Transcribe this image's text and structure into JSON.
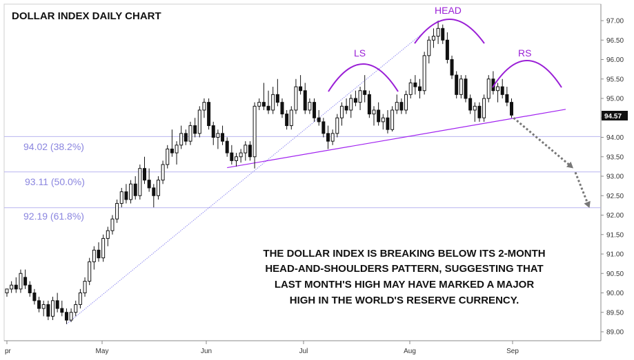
{
  "chart_data": {
    "type": "candlestick",
    "title": "DOLLAR INDEX DAILY CHART",
    "x_tick_labels": [
      "pr",
      "May",
      "Jun",
      "Jul",
      "Aug",
      "Sep"
    ],
    "y_tick_labels": [
      "89.00",
      "89.50",
      "90.00",
      "90.50",
      "91.00",
      "91.50",
      "92.00",
      "92.50",
      "93.00",
      "93.50",
      "94.00",
      "94.50",
      "95.00",
      "95.50",
      "96.00",
      "96.50",
      "97.00"
    ],
    "ylim": [
      88.9,
      97.2
    ],
    "last_price": "94.57",
    "series": [
      {
        "values": [
          [
            90.0,
            90.1,
            89.9,
            90.1
          ],
          [
            90.1,
            90.3,
            90.0,
            90.2
          ],
          [
            90.2,
            90.4,
            90.0,
            90.1
          ],
          [
            90.1,
            90.6,
            90.0,
            90.5
          ],
          [
            90.4,
            90.6,
            90.1,
            90.2
          ],
          [
            90.2,
            90.3,
            89.9,
            90.0
          ],
          [
            90.0,
            90.1,
            89.7,
            89.8
          ],
          [
            89.8,
            89.9,
            89.5,
            89.6
          ],
          [
            89.6,
            89.8,
            89.4,
            89.7
          ],
          [
            89.7,
            89.8,
            89.3,
            89.4
          ],
          [
            89.4,
            89.9,
            89.3,
            89.8
          ],
          [
            89.8,
            90.0,
            89.5,
            89.6
          ],
          [
            89.6,
            89.8,
            89.4,
            89.5
          ],
          [
            89.5,
            89.6,
            89.2,
            89.3
          ],
          [
            89.3,
            89.6,
            89.25,
            89.5
          ],
          [
            89.5,
            89.8,
            89.4,
            89.7
          ],
          [
            89.7,
            90.1,
            89.6,
            90.0
          ],
          [
            90.0,
            90.4,
            89.9,
            90.3
          ],
          [
            90.3,
            90.9,
            90.2,
            90.8
          ],
          [
            90.8,
            91.2,
            90.6,
            91.1
          ],
          [
            91.1,
            91.3,
            90.8,
            90.9
          ],
          [
            90.9,
            91.5,
            90.8,
            91.4
          ],
          [
            91.4,
            91.7,
            91.2,
            91.6
          ],
          [
            91.6,
            92.0,
            91.5,
            91.9
          ],
          [
            91.9,
            92.4,
            91.8,
            92.3
          ],
          [
            92.3,
            92.7,
            92.2,
            92.6
          ],
          [
            92.6,
            92.8,
            92.3,
            92.4
          ],
          [
            92.4,
            92.9,
            92.3,
            92.8
          ],
          [
            92.8,
            93.0,
            92.4,
            92.5
          ],
          [
            92.5,
            93.3,
            92.4,
            93.2
          ],
          [
            93.2,
            93.5,
            92.8,
            92.9
          ],
          [
            92.9,
            93.2,
            92.6,
            92.7
          ],
          [
            92.7,
            92.8,
            92.2,
            92.5
          ],
          [
            92.5,
            93.0,
            92.4,
            92.9
          ],
          [
            92.9,
            93.4,
            92.8,
            93.3
          ],
          [
            93.3,
            93.8,
            93.2,
            93.7
          ],
          [
            93.7,
            94.2,
            93.5,
            93.6
          ],
          [
            93.6,
            93.9,
            93.3,
            93.8
          ],
          [
            93.8,
            94.3,
            93.7,
            94.1
          ],
          [
            94.1,
            94.2,
            93.8,
            93.9
          ],
          [
            93.9,
            94.4,
            93.8,
            94.3
          ],
          [
            94.3,
            94.5,
            94.0,
            94.1
          ],
          [
            94.1,
            94.8,
            94.0,
            94.7
          ],
          [
            94.7,
            95.0,
            94.5,
            94.9
          ],
          [
            94.9,
            95.0,
            94.2,
            94.3
          ],
          [
            94.3,
            94.4,
            93.8,
            94.0
          ],
          [
            94.0,
            94.2,
            93.7,
            94.1
          ],
          [
            94.1,
            94.3,
            93.8,
            93.9
          ],
          [
            93.9,
            94.0,
            93.5,
            93.6
          ],
          [
            93.6,
            93.8,
            93.3,
            93.4
          ],
          [
            93.4,
            93.6,
            93.25,
            93.5
          ],
          [
            93.5,
            93.7,
            93.35,
            93.6
          ],
          [
            93.6,
            93.9,
            93.4,
            93.8
          ],
          [
            93.8,
            93.9,
            93.4,
            93.5
          ],
          [
            93.5,
            94.9,
            93.2,
            94.8
          ],
          [
            94.8,
            95.0,
            94.7,
            94.9
          ],
          [
            94.9,
            95.4,
            94.7,
            94.8
          ],
          [
            94.8,
            95.2,
            94.6,
            94.7
          ],
          [
            94.7,
            95.3,
            94.6,
            95.1
          ],
          [
            95.1,
            95.5,
            94.8,
            94.9
          ],
          [
            94.9,
            95.0,
            94.5,
            94.6
          ],
          [
            94.6,
            94.7,
            94.2,
            94.3
          ],
          [
            94.3,
            94.8,
            94.2,
            94.7
          ],
          [
            94.7,
            95.5,
            94.6,
            95.3
          ],
          [
            95.3,
            95.6,
            95.1,
            95.2
          ],
          [
            95.2,
            95.4,
            94.6,
            94.7
          ],
          [
            94.7,
            95.0,
            94.6,
            94.9
          ],
          [
            94.9,
            95.0,
            94.4,
            94.5
          ],
          [
            94.5,
            94.7,
            94.3,
            94.4
          ],
          [
            94.4,
            94.5,
            94.0,
            94.1
          ],
          [
            94.1,
            94.3,
            93.7,
            93.9
          ],
          [
            93.9,
            94.2,
            93.8,
            94.1
          ],
          [
            94.1,
            94.6,
            94.0,
            94.5
          ],
          [
            94.5,
            94.9,
            94.3,
            94.8
          ],
          [
            94.8,
            95.0,
            94.6,
            94.7
          ],
          [
            94.7,
            95.1,
            94.5,
            95.0
          ],
          [
            95.0,
            95.2,
            94.8,
            94.9
          ],
          [
            94.9,
            95.3,
            94.7,
            95.2
          ],
          [
            95.2,
            95.6,
            94.9,
            95.1
          ],
          [
            95.1,
            95.2,
            94.5,
            94.6
          ],
          [
            94.6,
            94.8,
            94.3,
            94.7
          ],
          [
            94.7,
            94.9,
            94.3,
            94.4
          ],
          [
            94.4,
            94.6,
            94.2,
            94.5
          ],
          [
            94.5,
            94.7,
            94.1,
            94.2
          ],
          [
            94.2,
            94.8,
            94.15,
            94.7
          ],
          [
            94.7,
            95.1,
            94.6,
            94.9
          ],
          [
            94.9,
            95.0,
            94.6,
            94.7
          ],
          [
            94.7,
            95.2,
            94.6,
            95.1
          ],
          [
            95.1,
            95.5,
            95.0,
            95.4
          ],
          [
            95.4,
            95.6,
            95.1,
            95.3
          ],
          [
            95.3,
            95.5,
            95.0,
            95.2
          ],
          [
            95.2,
            96.2,
            95.1,
            96.1
          ],
          [
            96.1,
            96.6,
            95.9,
            96.5
          ],
          [
            96.5,
            96.8,
            96.3,
            96.6
          ],
          [
            96.6,
            97.0,
            96.4,
            96.8
          ],
          [
            96.8,
            96.9,
            96.4,
            96.5
          ],
          [
            96.5,
            96.7,
            95.9,
            96.0
          ],
          [
            96.0,
            96.1,
            95.5,
            95.6
          ],
          [
            95.6,
            95.7,
            95.0,
            95.1
          ],
          [
            95.1,
            95.6,
            95.0,
            95.5
          ],
          [
            95.5,
            95.6,
            94.9,
            95.0
          ],
          [
            95.0,
            95.1,
            94.6,
            94.7
          ],
          [
            94.7,
            94.9,
            94.4,
            94.8
          ],
          [
            94.8,
            94.9,
            94.4,
            94.5
          ],
          [
            94.5,
            95.1,
            94.4,
            95.0
          ],
          [
            95.0,
            95.6,
            94.9,
            95.5
          ],
          [
            95.5,
            95.7,
            95.1,
            95.2
          ],
          [
            95.2,
            95.4,
            94.9,
            95.3
          ],
          [
            95.3,
            95.5,
            95.0,
            95.1
          ],
          [
            95.1,
            95.3,
            94.8,
            94.9
          ],
          [
            94.9,
            95.0,
            94.5,
            94.57
          ]
        ]
      }
    ],
    "annotations": {
      "pattern_labels": [
        "LS",
        "HEAD",
        "RS"
      ],
      "fib_levels": [
        {
          "label": "94.02 (38.2%)",
          "value": 94.02
        },
        {
          "label": "93.11 (50.0%)",
          "value": 93.11
        },
        {
          "label": "92.19 (61.8%)",
          "value": 92.19
        }
      ],
      "note_lines": [
        "THE DOLLAR INDEX IS BREAKING BELOW ITS 2-MONTH",
        "HEAD-AND-SHOULDERS PATTERN, SUGGESTING THAT",
        "LAST MONTH'S HIGH MAY HAVE MARKED A MAJOR",
        "HIGH IN THE WORLD'S RESERVE CURRENCY."
      ]
    },
    "colors": {
      "candle": "#111111",
      "fib_line": "#b7b4ef",
      "fib_text": "#8a85df",
      "neckline": "#a020f0",
      "arc": "#9a1fd6",
      "retrace_line": "#8f8af0",
      "arrow": "#777777",
      "price_tag_bg": "#111111"
    }
  }
}
